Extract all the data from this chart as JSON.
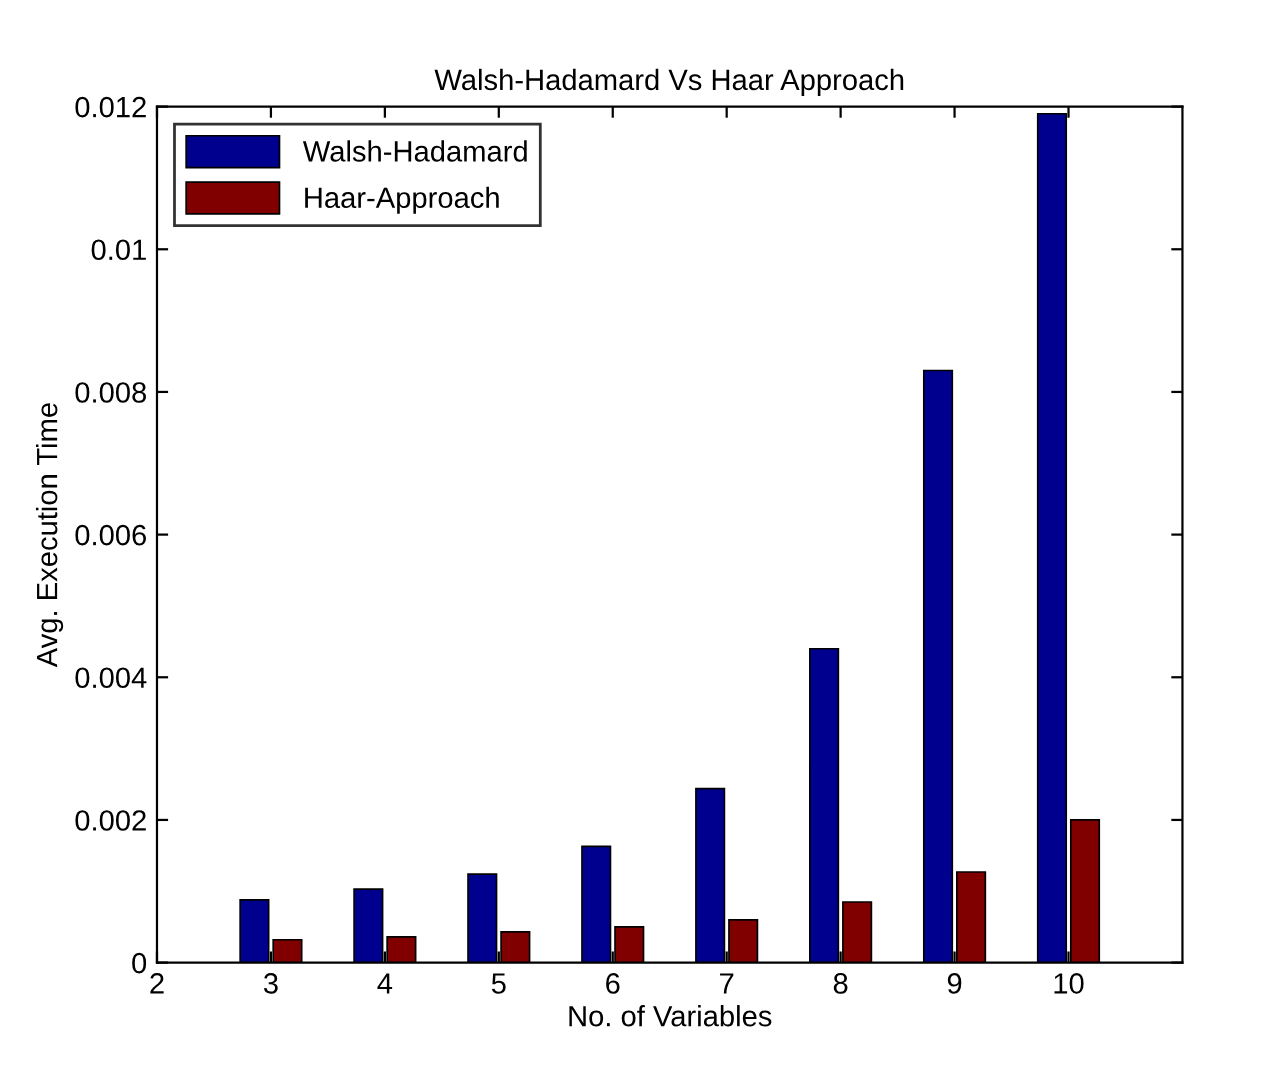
{
  "chart_data": {
    "type": "bar",
    "title": "Walsh-Hadamard Vs Haar Approach",
    "xlabel": "No. of Variables",
    "ylabel": "Avg. Execution Time",
    "x": [
      3,
      4,
      5,
      6,
      7,
      8,
      9,
      10
    ],
    "series": [
      {
        "name": "Walsh-Hadamard",
        "color": "#00008f",
        "values": [
          0.00088,
          0.00103,
          0.00124,
          0.00163,
          0.00244,
          0.0044,
          0.0083,
          0.0119
        ]
      },
      {
        "name": "Haar-Approach",
        "color": "#800000",
        "values": [
          0.00032,
          0.00036,
          0.00043,
          0.0005,
          0.0006,
          0.00085,
          0.00127,
          0.002
        ]
      }
    ],
    "xlim": [
      2,
      11
    ],
    "xticks": [
      2,
      3,
      4,
      5,
      6,
      7,
      8,
      9,
      10
    ],
    "ylim": [
      0,
      0.012
    ],
    "yticks": [
      0,
      0.002,
      0.004,
      0.006,
      0.008,
      0.01,
      0.012
    ],
    "legend": "top left",
    "grid": false
  }
}
